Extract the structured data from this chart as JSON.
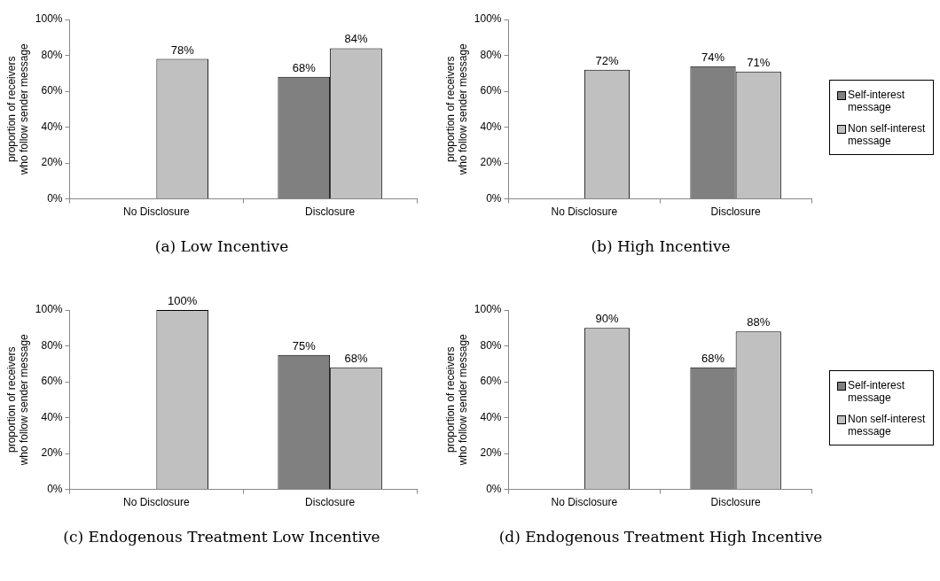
{
  "chart_data": [
    {
      "type": "bar",
      "title": "(a) Low Incentive",
      "ylabel": "proportion of receivers who follow sender message",
      "categories": [
        "No Disclosure",
        "Disclosure"
      ],
      "series": [
        {
          "color": "#808080",
          "values": [
            null,
            68
          ],
          "value_labels": [
            null,
            "68%"
          ]
        },
        {
          "color": "#c0c0c0",
          "values": [
            78,
            84
          ],
          "value_labels": [
            "78%",
            "84%"
          ]
        }
      ],
      "ylim": [
        0,
        100
      ],
      "yticks": [
        {
          "value": 0,
          "label": "0%"
        },
        {
          "value": 20,
          "label": "20%"
        },
        {
          "value": 40,
          "label": "40%"
        },
        {
          "value": 60,
          "label": "60%"
        },
        {
          "value": 80,
          "label": "80%"
        },
        {
          "value": 100,
          "label": "100%"
        }
      ],
      "grid": false,
      "legend": false
    },
    {
      "type": "bar",
      "title": "(b) High Incentive",
      "ylabel": "proportion of receivers who follow sender message",
      "categories": [
        "No Disclosure",
        "Disclosure"
      ],
      "series": [
        {
          "name": "Self-interest message",
          "color": "#808080",
          "values": [
            null,
            74
          ],
          "value_labels": [
            null,
            "74%"
          ]
        },
        {
          "name": "Non self-interest message",
          "color": "#c0c0c0",
          "values": [
            72,
            71
          ],
          "value_labels": [
            "72%",
            "71%"
          ]
        }
      ],
      "ylim": [
        0,
        100
      ],
      "yticks": [
        {
          "value": 0,
          "label": "0%"
        },
        {
          "value": 20,
          "label": "20%"
        },
        {
          "value": 40,
          "label": "40%"
        },
        {
          "value": 60,
          "label": "60%"
        },
        {
          "value": 80,
          "label": "80%"
        },
        {
          "value": 100,
          "label": "100%"
        }
      ],
      "grid": false,
      "legend": "right"
    },
    {
      "type": "bar",
      "title": "(c) Endogenous Treatment Low Incentive",
      "ylabel": "proportion of receivers who follow sender message",
      "categories": [
        "No Disclosure",
        "Disclosure"
      ],
      "series": [
        {
          "color": "#808080",
          "values": [
            null,
            75
          ],
          "value_labels": [
            null,
            "75%"
          ]
        },
        {
          "color": "#c0c0c0",
          "values": [
            100,
            68
          ],
          "value_labels": [
            "100%",
            "68%"
          ]
        }
      ],
      "ylim": [
        0,
        100
      ],
      "yticks": [
        {
          "value": 0,
          "label": "0%"
        },
        {
          "value": 20,
          "label": "20%"
        },
        {
          "value": 40,
          "label": "40%"
        },
        {
          "value": 60,
          "label": "60%"
        },
        {
          "value": 80,
          "label": "80%"
        },
        {
          "value": 100,
          "label": "100%"
        }
      ],
      "grid": false,
      "legend": false
    },
    {
      "type": "bar",
      "title": "(d) Endogenous Treatment High Incentive",
      "ylabel": "proportion of receivers who follow sender message",
      "categories": [
        "No Disclosure",
        "Disclosure"
      ],
      "series": [
        {
          "name": "Self-interest message",
          "color": "#808080",
          "values": [
            null,
            68
          ],
          "value_labels": [
            null,
            "68%"
          ]
        },
        {
          "name": "Non self-interest message",
          "color": "#c0c0c0",
          "values": [
            90,
            88
          ],
          "value_labels": [
            "90%",
            "88%"
          ]
        }
      ],
      "ylim": [
        0,
        100
      ],
      "yticks": [
        {
          "value": 0,
          "label": "0%"
        },
        {
          "value": 20,
          "label": "20%"
        },
        {
          "value": 40,
          "label": "40%"
        },
        {
          "value": 60,
          "label": "60%"
        },
        {
          "value": 80,
          "label": "80%"
        },
        {
          "value": 100,
          "label": "100%"
        }
      ],
      "grid": false,
      "legend": "right"
    }
  ]
}
